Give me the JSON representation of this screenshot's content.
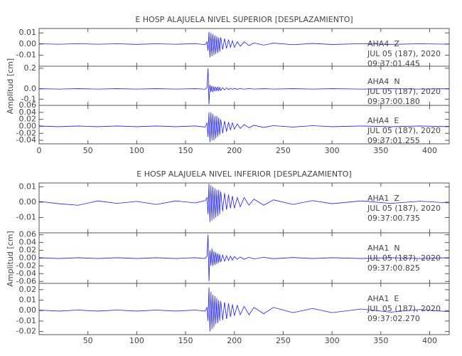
{
  "chart_data": [
    {
      "type": "line",
      "title": "E HOSP ALAJUELA NIVEL SUPERIOR [DESPLAZAMIENTO]",
      "y_label": "Amplitud [cm]",
      "xlim": [
        0,
        420
      ],
      "xticks": [
        0,
        50,
        100,
        150,
        200,
        250,
        300,
        350,
        400
      ],
      "x": [
        0,
        20,
        40,
        60,
        80,
        100,
        120,
        140,
        160,
        170,
        172,
        173,
        174,
        175,
        176,
        177,
        178,
        179,
        180,
        181,
        182,
        183,
        184,
        185,
        186,
        188,
        190,
        192,
        194,
        196,
        198,
        200,
        203,
        206,
        210,
        215,
        220,
        230,
        240,
        260,
        280,
        300,
        330,
        360,
        390,
        420
      ],
      "panels": [
        {
          "station": "AHA4  Z",
          "date": "JUL 05 (187), 2020",
          "time": "09:37:01.445",
          "ylim": [
            -0.02,
            0.014
          ],
          "yticks": [
            -0.01,
            {
              "value": 0,
              "label": "0.00"
            },
            0.01
          ],
          "series": [
            {
              "color": "#1a1aff",
              "values": [
                0.0002,
                -0.0002,
                0.0003,
                -0.0002,
                0.0002,
                -0.0003,
                0.0002,
                -0.0002,
                0.0003,
                -0.0005,
                0.002,
                -0.006,
                0.011,
                -0.012,
                0.01,
                -0.011,
                0.009,
                -0.01,
                0.008,
                -0.009,
                0.007,
                -0.008,
                0.006,
                -0.007,
                0.006,
                -0.005,
                0.005,
                -0.004,
                0.004,
                -0.003,
                0.003,
                -0.003,
                0.002,
                -0.002,
                0.002,
                -0.0015,
                0.001,
                -0.001,
                0.0008,
                -0.0006,
                0.0005,
                -0.0004,
                0.0003,
                -0.0003,
                0.0002,
                -0.0002
              ]
            }
          ]
        },
        {
          "station": "AHA4  N",
          "date": "JUL 05 (187), 2020",
          "time": "09:37:00.180",
          "ylim": [
            -0.16,
            0.22
          ],
          "yticks": [
            -0.1,
            {
              "value": 0,
              "label": "0.0"
            },
            0.2
          ],
          "series": [
            {
              "color": "#1a1aff",
              "values": [
                0.002,
                -0.002,
                0.002,
                -0.002,
                0.002,
                -0.002,
                0.002,
                -0.002,
                0.002,
                -0.003,
                0.01,
                0.2,
                -0.15,
                0.04,
                -0.03,
                0.03,
                -0.03,
                0.025,
                -0.025,
                0.02,
                -0.02,
                0.02,
                -0.018,
                0.015,
                -0.015,
                0.012,
                -0.01,
                0.01,
                -0.008,
                0.007,
                -0.006,
                0.005,
                -0.004,
                0.004,
                -0.003,
                0.003,
                -0.002,
                0.002,
                -0.002,
                0.002,
                -0.002,
                0.002,
                -0.002,
                0.002,
                -0.002,
                0.002
              ]
            }
          ]
        },
        {
          "station": "AHA4  E",
          "date": "JUL 05 (187), 2020",
          "time": "09:37:01.255",
          "ylim": [
            -0.05,
            0.06
          ],
          "yticks": [
            -0.04,
            -0.02,
            {
              "value": 0,
              "label": "0.00"
            },
            0.02,
            0.04,
            0.06
          ],
          "series": [
            {
              "color": "#1a1aff",
              "values": [
                0.001,
                -0.001,
                0.001,
                -0.001,
                0.001,
                -0.001,
                0.001,
                -0.001,
                0.001,
                -0.002,
                0.01,
                -0.03,
                0.04,
                -0.045,
                0.04,
                -0.04,
                0.035,
                -0.04,
                0.03,
                -0.035,
                0.03,
                -0.03,
                0.025,
                -0.025,
                0.02,
                -0.02,
                0.015,
                -0.015,
                0.012,
                -0.01,
                0.01,
                -0.008,
                0.007,
                -0.006,
                0.005,
                -0.004,
                0.003,
                -0.003,
                0.002,
                -0.002,
                0.002,
                -0.001,
                0.001,
                -0.001,
                0.001,
                -0.001
              ]
            }
          ]
        }
      ]
    },
    {
      "type": "line",
      "title": "E HOSP ALAJUELA NIVEL INFERIOR [DESPLAZAMIENTO]",
      "y_label": "Amplitud [cm]",
      "xlim": [
        0,
        420
      ],
      "xticks": [
        50,
        100,
        150,
        200,
        250,
        300,
        350,
        400
      ],
      "x": [
        0,
        20,
        40,
        60,
        80,
        100,
        120,
        140,
        160,
        170,
        172,
        173,
        174,
        175,
        176,
        177,
        178,
        179,
        180,
        181,
        182,
        183,
        184,
        185,
        186,
        188,
        190,
        192,
        194,
        196,
        198,
        200,
        203,
        206,
        210,
        215,
        220,
        230,
        240,
        260,
        280,
        300,
        330,
        360,
        390,
        420
      ],
      "panels": [
        {
          "station": "AHA1  Z",
          "date": "JUL 05 (187), 2020",
          "time": "09:37:00.735",
          "ylim": [
            -0.02,
            0.0125
          ],
          "yticks": [
            -0.01,
            {
              "value": 0,
              "label": "0.00"
            },
            0.01
          ],
          "series": [
            {
              "color": "#1a1aff",
              "values": [
                0.0005,
                -0.001,
                -0.002,
                0.0008,
                -0.0008,
                0.0005,
                -0.0015,
                0.0008,
                -0.0005,
                0.001,
                0.003,
                -0.008,
                0.012,
                -0.013,
                0.011,
                -0.012,
                0.01,
                -0.011,
                0.009,
                -0.01,
                0.008,
                -0.009,
                0.008,
                -0.008,
                0.007,
                -0.006,
                0.006,
                -0.005,
                0.005,
                -0.004,
                0.004,
                -0.004,
                0.003,
                -0.003,
                0.003,
                -0.002,
                0.002,
                -0.002,
                0.0015,
                -0.0015,
                0.001,
                -0.001,
                0.0008,
                -0.0008,
                0.0006,
                -0.0005
              ]
            }
          ]
        },
        {
          "station": "AHA1  N",
          "date": "JUL 05 (187), 2020",
          "time": "09:37:00.825",
          "ylim": [
            -0.065,
            0.065
          ],
          "yticks": [
            -0.06,
            -0.04,
            -0.02,
            {
              "value": 0,
              "label": "0.00"
            },
            0.02,
            0.04,
            0.06
          ],
          "series": [
            {
              "color": "#1a1aff",
              "values": [
                0.001,
                -0.001,
                0.001,
                -0.001,
                0.001,
                -0.001,
                0.001,
                -0.001,
                0.001,
                -0.001,
                0.005,
                0.06,
                -0.06,
                0.02,
                -0.02,
                0.025,
                -0.02,
                0.018,
                -0.018,
                0.015,
                -0.015,
                0.012,
                -0.012,
                0.01,
                -0.01,
                0.008,
                -0.008,
                0.006,
                -0.006,
                0.005,
                -0.005,
                0.004,
                -0.003,
                0.003,
                -0.003,
                0.002,
                -0.002,
                0.002,
                -0.0015,
                0.0015,
                -0.001,
                0.001,
                -0.001,
                0.001,
                -0.001,
                0.001
              ]
            }
          ]
        },
        {
          "station": "AHA1  E",
          "date": "JUL 05 (187), 2020",
          "time": "09:37:02.270",
          "ylim": [
            -0.023,
            0.026
          ],
          "yticks": [
            -0.02,
            -0.01,
            {
              "value": 0,
              "label": "0.00"
            },
            0.01,
            0.02
          ],
          "series": [
            {
              "color": "#1a1aff",
              "values": [
                0.0005,
                -0.0005,
                0.0005,
                -0.0005,
                0.0005,
                -0.0005,
                0.0005,
                -0.0005,
                0.0005,
                -0.0005,
                0.003,
                -0.01,
                0.022,
                -0.02,
                0.018,
                -0.018,
                0.015,
                -0.016,
                0.014,
                -0.013,
                0.012,
                -0.012,
                0.01,
                -0.01,
                0.009,
                -0.009,
                0.008,
                -0.008,
                0.007,
                -0.006,
                0.006,
                -0.005,
                0.005,
                -0.004,
                0.004,
                -0.004,
                0.003,
                -0.003,
                0.003,
                -0.002,
                0.002,
                -0.002,
                0.0015,
                -0.0015,
                0.001,
                -0.001
              ]
            }
          ]
        }
      ]
    }
  ]
}
